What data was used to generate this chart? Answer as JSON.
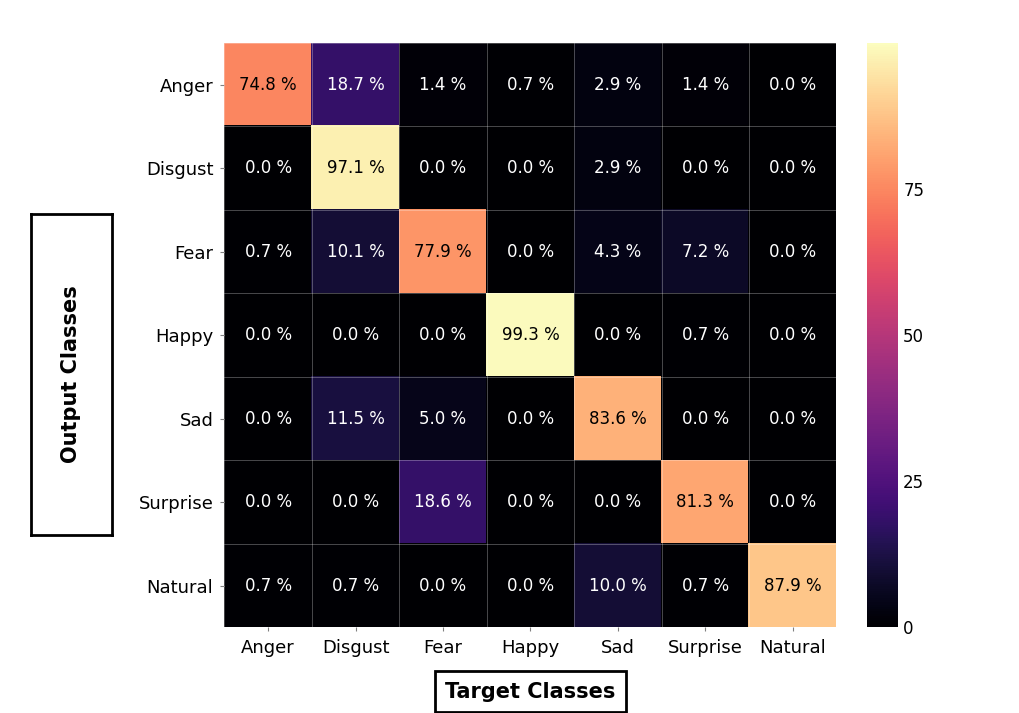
{
  "classes": [
    "Anger",
    "Disgust",
    "Fear",
    "Happy",
    "Sad",
    "Surprise",
    "Natural"
  ],
  "matrix": [
    [
      74.8,
      18.7,
      1.4,
      0.7,
      2.9,
      1.4,
      0.0
    ],
    [
      0.0,
      97.1,
      0.0,
      0.0,
      2.9,
      0.0,
      0.0
    ],
    [
      0.7,
      10.1,
      77.9,
      0.0,
      4.3,
      7.2,
      0.0
    ],
    [
      0.0,
      0.0,
      0.0,
      99.3,
      0.0,
      0.7,
      0.0
    ],
    [
      0.0,
      11.5,
      5.0,
      0.0,
      83.6,
      0.0,
      0.0
    ],
    [
      0.0,
      0.0,
      18.6,
      0.0,
      0.0,
      81.3,
      0.0
    ],
    [
      0.7,
      0.7,
      0.0,
      0.0,
      10.0,
      0.7,
      87.9
    ]
  ],
  "xlabel": "Target Classes",
  "ylabel": "Output Classes",
  "colormap": "magma",
  "vmin": 0,
  "vmax": 100,
  "text_color_threshold": 50,
  "background_color": "#ffffff",
  "font_size_tick_labels": 13,
  "font_size_values": 12,
  "font_size_axis_label": 15,
  "colorbar_ticks": [
    0,
    25,
    50,
    75
  ],
  "colorbar_ticklabels": [
    "0",
    "25",
    "50",
    "75"
  ]
}
